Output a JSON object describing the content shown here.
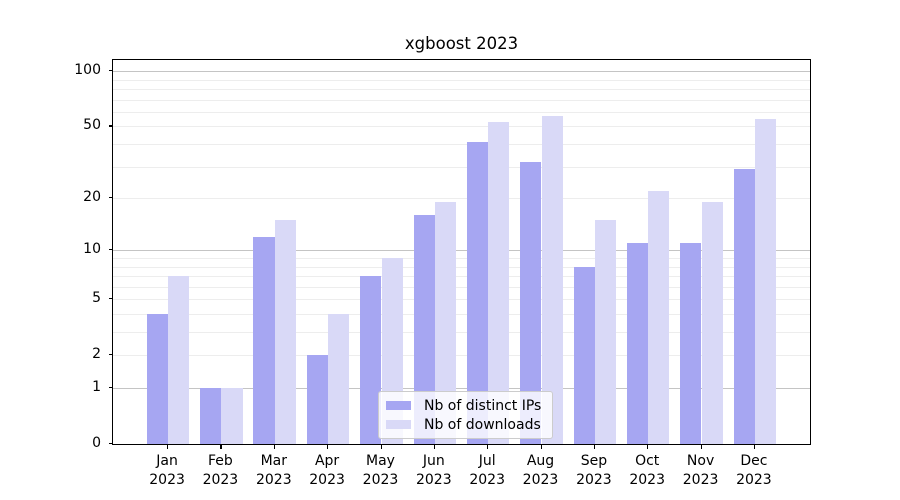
{
  "chart_data": {
    "type": "bar",
    "title": "xgboost 2023",
    "categories": [
      "Jan",
      "Feb",
      "Mar",
      "Apr",
      "May",
      "Jun",
      "Jul",
      "Aug",
      "Sep",
      "Oct",
      "Nov",
      "Dec"
    ],
    "category_year": "2023",
    "series": [
      {
        "name": "Nb of distinct IPs",
        "color": "#a6a6f2",
        "values": [
          4,
          1,
          12,
          2,
          7,
          16,
          41,
          32,
          8,
          11,
          11,
          29
        ]
      },
      {
        "name": "Nb of downloads",
        "color": "#d9d9f7",
        "values": [
          7,
          1,
          15,
          4,
          9,
          19,
          53,
          57,
          15,
          22,
          19,
          55
        ]
      }
    ],
    "y_scale": "log1p",
    "ylim": [
      0,
      115
    ],
    "y_ticks": [
      0,
      1,
      2,
      5,
      10,
      20,
      50,
      100
    ],
    "y_major_gridlines": [
      1,
      10,
      100
    ],
    "y_minor_gridlines": [
      2,
      3,
      4,
      5,
      6,
      7,
      8,
      9,
      20,
      30,
      40,
      50,
      60,
      70,
      80,
      90
    ],
    "grid": true,
    "legend_position": "lower center",
    "colors": {
      "spine": "#000000",
      "major_grid": "#c4c4c4",
      "minor_grid": "#ededed",
      "background": "#ffffff"
    }
  }
}
